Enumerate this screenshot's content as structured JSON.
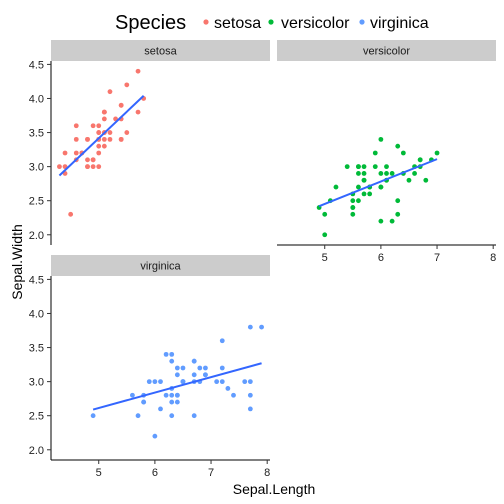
{
  "chart_data": {
    "type": "scatter",
    "xlabel": "Sepal.Length",
    "ylabel": "Sepal.Width",
    "xlim": [
      4.15,
      8.05
    ],
    "ylim": [
      1.85,
      4.55
    ],
    "x_ticks": [
      5,
      6,
      7,
      8
    ],
    "y_ticks": [
      2.0,
      2.5,
      3.0,
      3.5,
      4.0,
      4.5
    ],
    "y_tick_labels": [
      "2.0",
      "2.5",
      "3.0",
      "3.5",
      "4.0",
      "4.5"
    ],
    "legend": {
      "title": "Species",
      "position": "top"
    },
    "smooth_line_color": "#3366ff",
    "panels": [
      {
        "name": "setosa",
        "color": "#f8766d",
        "fit": {
          "x": [
            4.3,
            5.8
          ],
          "y": [
            2.87,
            4.04
          ]
        },
        "points": [
          [
            4.3,
            3.0
          ],
          [
            4.4,
            2.9
          ],
          [
            4.4,
            3.0
          ],
          [
            4.4,
            3.2
          ],
          [
            4.5,
            2.3
          ],
          [
            4.6,
            3.1
          ],
          [
            4.6,
            3.4
          ],
          [
            4.6,
            3.6
          ],
          [
            4.6,
            3.2
          ],
          [
            4.7,
            3.2
          ],
          [
            4.7,
            3.2
          ],
          [
            4.8,
            3.4
          ],
          [
            4.8,
            3.0
          ],
          [
            4.8,
            3.4
          ],
          [
            4.8,
            3.1
          ],
          [
            4.8,
            3.0
          ],
          [
            4.9,
            3.0
          ],
          [
            4.9,
            3.1
          ],
          [
            4.9,
            3.6
          ],
          [
            4.9,
            3.1
          ],
          [
            5.0,
            3.6
          ],
          [
            5.0,
            3.4
          ],
          [
            5.0,
            3.0
          ],
          [
            5.0,
            3.4
          ],
          [
            5.0,
            3.2
          ],
          [
            5.0,
            3.5
          ],
          [
            5.0,
            3.5
          ],
          [
            5.0,
            3.3
          ],
          [
            5.1,
            3.5
          ],
          [
            5.1,
            3.5
          ],
          [
            5.1,
            3.8
          ],
          [
            5.1,
            3.7
          ],
          [
            5.1,
            3.3
          ],
          [
            5.1,
            3.4
          ],
          [
            5.1,
            3.8
          ],
          [
            5.1,
            3.8
          ],
          [
            5.2,
            3.5
          ],
          [
            5.2,
            3.4
          ],
          [
            5.2,
            4.1
          ],
          [
            5.3,
            3.7
          ],
          [
            5.4,
            3.9
          ],
          [
            5.4,
            3.7
          ],
          [
            5.4,
            3.9
          ],
          [
            5.4,
            3.4
          ],
          [
            5.4,
            3.4
          ],
          [
            5.5,
            4.2
          ],
          [
            5.5,
            3.5
          ],
          [
            5.7,
            4.4
          ],
          [
            5.7,
            3.8
          ],
          [
            5.8,
            4.0
          ]
        ]
      },
      {
        "name": "versicolor",
        "color": "#00ba38",
        "fit": {
          "x": [
            4.9,
            7.0
          ],
          "y": [
            2.42,
            3.11
          ]
        },
        "points": [
          [
            4.9,
            2.4
          ],
          [
            5.0,
            2.0
          ],
          [
            5.0,
            2.3
          ],
          [
            5.1,
            2.5
          ],
          [
            5.2,
            2.7
          ],
          [
            5.4,
            3.0
          ],
          [
            5.5,
            2.3
          ],
          [
            5.5,
            2.4
          ],
          [
            5.5,
            2.4
          ],
          [
            5.5,
            2.5
          ],
          [
            5.5,
            2.6
          ],
          [
            5.6,
            2.9
          ],
          [
            5.6,
            3.0
          ],
          [
            5.6,
            2.5
          ],
          [
            5.6,
            3.0
          ],
          [
            5.6,
            2.7
          ],
          [
            5.7,
            2.8
          ],
          [
            5.7,
            2.6
          ],
          [
            5.7,
            3.0
          ],
          [
            5.7,
            2.9
          ],
          [
            5.7,
            2.8
          ],
          [
            5.8,
            2.7
          ],
          [
            5.8,
            2.7
          ],
          [
            5.8,
            2.6
          ],
          [
            5.9,
            3.0
          ],
          [
            5.9,
            3.2
          ],
          [
            6.0,
            2.2
          ],
          [
            6.0,
            2.9
          ],
          [
            6.0,
            2.7
          ],
          [
            6.0,
            3.4
          ],
          [
            6.0,
            2.7
          ],
          [
            6.1,
            2.8
          ],
          [
            6.1,
            2.8
          ],
          [
            6.1,
            2.9
          ],
          [
            6.1,
            3.0
          ],
          [
            6.2,
            2.2
          ],
          [
            6.2,
            2.9
          ],
          [
            6.3,
            3.3
          ],
          [
            6.3,
            2.5
          ],
          [
            6.3,
            2.3
          ],
          [
            6.4,
            3.2
          ],
          [
            6.4,
            2.9
          ],
          [
            6.5,
            2.8
          ],
          [
            6.6,
            2.9
          ],
          [
            6.6,
            3.0
          ],
          [
            6.7,
            3.1
          ],
          [
            6.7,
            3.0
          ],
          [
            6.7,
            3.1
          ],
          [
            6.8,
            2.8
          ],
          [
            6.9,
            3.1
          ],
          [
            7.0,
            3.2
          ]
        ]
      },
      {
        "name": "virginica",
        "color": "#619cff",
        "fit": {
          "x": [
            4.9,
            7.9
          ],
          "y": [
            2.59,
            3.27
          ]
        },
        "points": [
          [
            4.9,
            2.5
          ],
          [
            5.6,
            2.8
          ],
          [
            5.7,
            2.5
          ],
          [
            5.8,
            2.7
          ],
          [
            5.8,
            2.8
          ],
          [
            5.8,
            2.7
          ],
          [
            5.9,
            3.0
          ],
          [
            6.0,
            2.2
          ],
          [
            6.0,
            3.0
          ],
          [
            6.1,
            3.0
          ],
          [
            6.1,
            2.6
          ],
          [
            6.2,
            2.8
          ],
          [
            6.2,
            3.4
          ],
          [
            6.3,
            3.3
          ],
          [
            6.3,
            2.9
          ],
          [
            6.3,
            2.7
          ],
          [
            6.3,
            2.8
          ],
          [
            6.3,
            3.4
          ],
          [
            6.3,
            2.5
          ],
          [
            6.4,
            2.7
          ],
          [
            6.4,
            3.2
          ],
          [
            6.4,
            2.8
          ],
          [
            6.4,
            2.8
          ],
          [
            6.4,
            3.1
          ],
          [
            6.5,
            3.0
          ],
          [
            6.5,
            3.2
          ],
          [
            6.5,
            3.0
          ],
          [
            6.5,
            3.0
          ],
          [
            6.7,
            2.5
          ],
          [
            6.7,
            3.3
          ],
          [
            6.7,
            3.1
          ],
          [
            6.7,
            3.3
          ],
          [
            6.7,
            3.0
          ],
          [
            6.8,
            3.0
          ],
          [
            6.8,
            3.2
          ],
          [
            6.9,
            3.2
          ],
          [
            6.9,
            3.1
          ],
          [
            6.9,
            3.1
          ],
          [
            7.1,
            3.0
          ],
          [
            7.2,
            3.6
          ],
          [
            7.2,
            3.2
          ],
          [
            7.2,
            3.0
          ],
          [
            7.3,
            2.9
          ],
          [
            7.4,
            2.8
          ],
          [
            7.6,
            3.0
          ],
          [
            7.7,
            3.8
          ],
          [
            7.7,
            2.6
          ],
          [
            7.7,
            2.8
          ],
          [
            7.7,
            3.0
          ],
          [
            7.9,
            3.8
          ]
        ]
      }
    ]
  }
}
